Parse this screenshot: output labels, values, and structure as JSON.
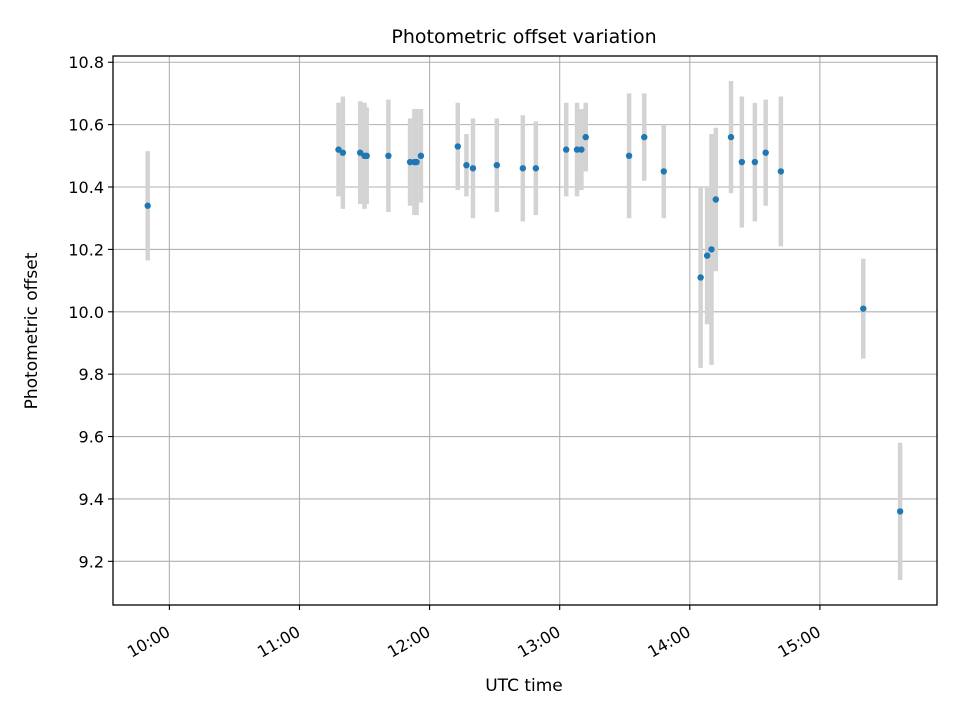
{
  "chart_data": {
    "type": "scatter",
    "title": "Photometric offset variation",
    "xlabel": "UTC time",
    "ylabel": "Photometric offset",
    "grid": true,
    "xlim": [
      "09:34",
      "15:54"
    ],
    "ylim": [
      9.06,
      10.82
    ],
    "x_ticks": [
      "10:00",
      "11:00",
      "12:00",
      "13:00",
      "14:00",
      "15:00"
    ],
    "y_ticks": [
      "9.2",
      "9.4",
      "9.6",
      "9.8",
      "10.0",
      "10.2",
      "10.4",
      "10.6",
      "10.8"
    ],
    "colors": {
      "point": "#1f77b4",
      "errorbar": "#d3d3d3",
      "grid": "#b0b0b0"
    },
    "points": [
      {
        "x": "09:50",
        "y": 10.34,
        "err": 0.175
      },
      {
        "x": "11:18",
        "y": 10.52,
        "err": 0.15
      },
      {
        "x": "11:20",
        "y": 10.51,
        "err": 0.18
      },
      {
        "x": "11:28",
        "y": 10.51,
        "err": 0.165
      },
      {
        "x": "11:30",
        "y": 10.5,
        "err": 0.17
      },
      {
        "x": "11:31",
        "y": 10.5,
        "err": 0.155
      },
      {
        "x": "11:41",
        "y": 10.5,
        "err": 0.18
      },
      {
        "x": "11:51",
        "y": 10.48,
        "err": 0.14
      },
      {
        "x": "11:53",
        "y": 10.48,
        "err": 0.17
      },
      {
        "x": "11:54",
        "y": 10.48,
        "err": 0.17
      },
      {
        "x": "11:56",
        "y": 10.5,
        "err": 0.15
      },
      {
        "x": "12:13",
        "y": 10.53,
        "err": 0.14
      },
      {
        "x": "12:17",
        "y": 10.47,
        "err": 0.1
      },
      {
        "x": "12:20",
        "y": 10.46,
        "err": 0.16
      },
      {
        "x": "12:31",
        "y": 10.47,
        "err": 0.15
      },
      {
        "x": "12:43",
        "y": 10.46,
        "err": 0.17
      },
      {
        "x": "12:49",
        "y": 10.46,
        "err": 0.15
      },
      {
        "x": "13:03",
        "y": 10.52,
        "err": 0.15
      },
      {
        "x": "13:08",
        "y": 10.52,
        "err": 0.15
      },
      {
        "x": "13:10",
        "y": 10.52,
        "err": 0.13
      },
      {
        "x": "13:12",
        "y": 10.56,
        "err": 0.11
      },
      {
        "x": "13:32",
        "y": 10.5,
        "err": 0.2
      },
      {
        "x": "13:39",
        "y": 10.56,
        "err": 0.14
      },
      {
        "x": "13:48",
        "y": 10.45,
        "err": 0.15
      },
      {
        "x": "14:05",
        "y": 10.11,
        "err": 0.29
      },
      {
        "x": "14:08",
        "y": 10.18,
        "err": 0.22
      },
      {
        "x": "14:10",
        "y": 10.2,
        "err": 0.37
      },
      {
        "x": "14:12",
        "y": 10.36,
        "err": 0.23
      },
      {
        "x": "14:19",
        "y": 10.56,
        "err": 0.18
      },
      {
        "x": "14:24",
        "y": 10.48,
        "err": 0.21
      },
      {
        "x": "14:30",
        "y": 10.48,
        "err": 0.19
      },
      {
        "x": "14:35",
        "y": 10.51,
        "err": 0.17
      },
      {
        "x": "14:42",
        "y": 10.45,
        "err": 0.24
      },
      {
        "x": "15:20",
        "y": 10.01,
        "err": 0.16
      },
      {
        "x": "15:37",
        "y": 9.36,
        "err": 0.22
      }
    ]
  }
}
